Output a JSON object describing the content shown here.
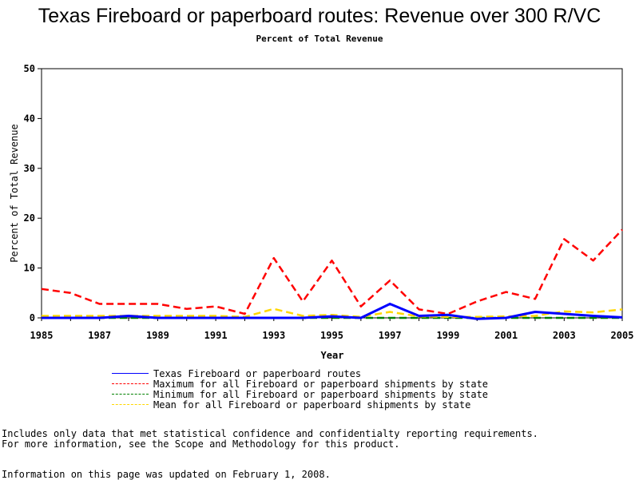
{
  "chart_data": {
    "type": "line",
    "title": "Texas Fireboard or paperboard routes: Revenue over 300 R/VC",
    "subtitle": "Percent of Total Revenue",
    "xlabel": "Year",
    "ylabel": "Percent of Total Revenue",
    "xlim": [
      1985,
      2005
    ],
    "ylim": [
      0,
      50
    ],
    "xticks": [
      1985,
      1987,
      1989,
      1991,
      1993,
      1995,
      1997,
      1999,
      2001,
      2003,
      2005
    ],
    "yticks": [
      0,
      10,
      20,
      30,
      40,
      50
    ],
    "grid": false,
    "legend_position": "bottom",
    "x": [
      1985,
      1986,
      1987,
      1988,
      1989,
      1990,
      1991,
      1992,
      1993,
      1994,
      1995,
      1996,
      1997,
      1998,
      1999,
      2000,
      2001,
      2002,
      2003,
      2004,
      2005
    ],
    "series": [
      {
        "name": "Texas Fireboard or paperboard routes",
        "color": "#0000ff",
        "dash": "solid",
        "values": [
          0,
          0,
          0,
          0.4,
          0,
          0,
          0,
          0,
          0,
          0,
          0.3,
          0,
          2.8,
          0.4,
          0.6,
          -0.2,
          0,
          1.2,
          0.8,
          0.4,
          0.1
        ]
      },
      {
        "name": "Maximum for all Fireboard or paperboard shipments by state",
        "color": "#ff0000",
        "dash": "dashed",
        "values": [
          5.8,
          5.0,
          2.8,
          2.8,
          2.8,
          1.8,
          2.3,
          0.8,
          12.0,
          3.3,
          11.5,
          2.3,
          7.5,
          1.7,
          0.8,
          3.3,
          5.2,
          3.8,
          15.8,
          11.5,
          17.7
        ]
      },
      {
        "name": "Minimum for all Fireboard or paperboard shipments by state",
        "color": "#008000",
        "dash": "dashed",
        "values": [
          0,
          0,
          0,
          0,
          0,
          0,
          0,
          0,
          0,
          0,
          0,
          0,
          0,
          0,
          0,
          0,
          0,
          0,
          0,
          0,
          0
        ]
      },
      {
        "name": "Mean for all Fireboard or paperboard shipments by state",
        "color": "#ffd700",
        "dash": "dashed",
        "values": [
          0.4,
          0.4,
          0.4,
          0.4,
          0.4,
          0.4,
          0.4,
          0.2,
          1.8,
          0.4,
          0.6,
          0.2,
          1.2,
          0.3,
          0.2,
          0.2,
          0.3,
          0.4,
          1.3,
          1.1,
          1.7
        ]
      }
    ]
  },
  "footnotes": [
    "Includes only data that met statistical confidence and confidentialty reporting requirements.",
    "For more information, see the Scope and Methodology for this product."
  ],
  "updated": "Information on this page was updated on February 1, 2008."
}
